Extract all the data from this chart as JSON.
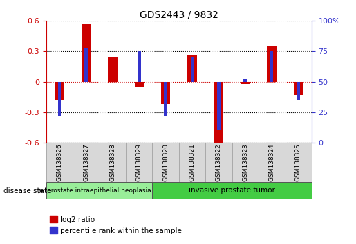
{
  "title": "GDS2443 / 9832",
  "samples": [
    "GSM138326",
    "GSM138327",
    "GSM138328",
    "GSM138329",
    "GSM138320",
    "GSM138321",
    "GSM138322",
    "GSM138323",
    "GSM138324",
    "GSM138325"
  ],
  "log2_ratio": [
    -0.18,
    0.57,
    0.25,
    -0.05,
    -0.22,
    0.26,
    -0.62,
    -0.02,
    0.35,
    -0.13
  ],
  "percentile_rank": [
    22,
    78,
    50,
    75,
    22,
    70,
    10,
    52,
    75,
    35
  ],
  "ylim": [
    -0.6,
    0.6
  ],
  "yticks_left": [
    -0.6,
    -0.3,
    0,
    0.3,
    0.6
  ],
  "yticks_left_labels": [
    "-0.6",
    "-0.3",
    "0",
    "0.3",
    "0.6"
  ],
  "yticks_right_positions": [
    -0.6,
    -0.3,
    0.0,
    0.3,
    0.6
  ],
  "yticks_right_labels": [
    "0",
    "25",
    "50",
    "75",
    "100%"
  ],
  "bar_color_red": "#cc0000",
  "bar_color_blue": "#3333cc",
  "zero_line_color": "#cc0000",
  "dotted_line_color": "#000000",
  "group1_count": 4,
  "group1_label": "prostate intraepithelial neoplasia",
  "group2_count": 6,
  "group2_label": "invasive prostate tumor",
  "group1_color": "#99ee99",
  "group2_color": "#44cc44",
  "disease_state_label": "disease state",
  "legend_red_label": "log2 ratio",
  "legend_blue_label": "percentile rank within the sample",
  "bg_color": "#ffffff",
  "tick_label_color_left": "#cc0000",
  "tick_label_color_right": "#3333cc"
}
